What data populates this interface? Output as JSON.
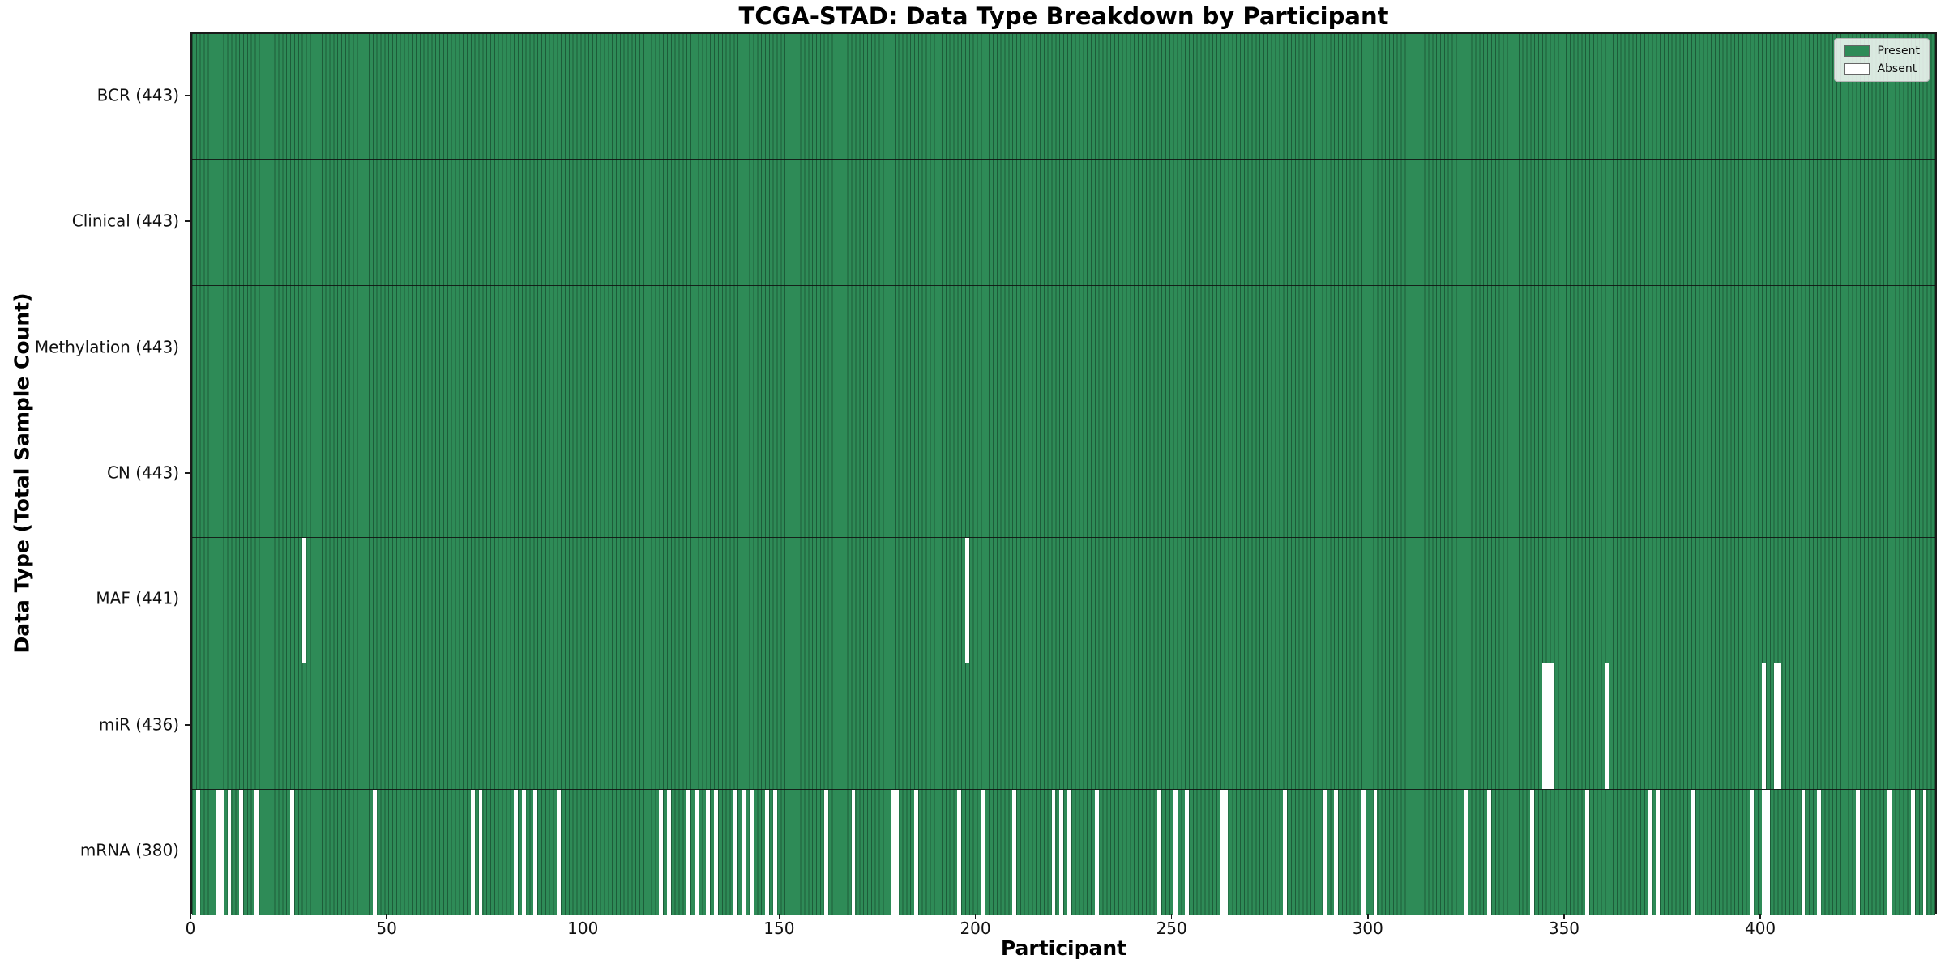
{
  "figure": {
    "title": "TCGA-STAD: Data Type Breakdown by Participant",
    "xlabel": "Participant",
    "ylabel": "Data Type (Total Sample Count)"
  },
  "legend": {
    "items": [
      {
        "label": "Present",
        "color": "#2e8b57"
      },
      {
        "label": "Absent",
        "color": "#ffffff"
      }
    ]
  },
  "colors": {
    "present": "#2e8b57",
    "absent": "#ffffff",
    "bar_edge": "#1d5c39",
    "axis": "#1a1a1a"
  },
  "chart_data": {
    "type": "heatmap",
    "title": "TCGA-STAD: Data Type Breakdown by Participant",
    "xlabel": "Participant",
    "ylabel": "Data Type (Total Sample Count)",
    "x_range": [
      0,
      445
    ],
    "x_ticks": [
      0,
      50,
      100,
      150,
      200,
      250,
      300,
      350,
      400
    ],
    "n_participants": 443,
    "legend": [
      "Present",
      "Absent"
    ],
    "legend_position": "upper right",
    "grid": false,
    "rows": [
      {
        "data_type": "BCR",
        "label": "BCR (443)",
        "present_count": 443,
        "absent_participants": []
      },
      {
        "data_type": "Clinical",
        "label": "Clinical (443)",
        "present_count": 443,
        "absent_participants": []
      },
      {
        "data_type": "Methylation",
        "label": "Methylation (443)",
        "present_count": 443,
        "absent_participants": []
      },
      {
        "data_type": "CN",
        "label": "CN (443)",
        "present_count": 443,
        "absent_participants": []
      },
      {
        "data_type": "MAF",
        "label": "MAF (441)",
        "present_count": 441,
        "absent_participants": [
          28,
          197
        ]
      },
      {
        "data_type": "miR",
        "label": "miR (436)",
        "present_count": 436,
        "absent_participants": [
          344,
          345,
          346,
          360,
          400,
          403,
          404
        ]
      },
      {
        "data_type": "mRNA",
        "label": "mRNA (380)",
        "present_count": 380,
        "absent_participants": [
          1,
          6,
          7,
          9,
          12,
          16,
          25,
          46,
          71,
          73,
          82,
          84,
          87,
          93,
          119,
          121,
          126,
          128,
          131,
          133,
          138,
          140,
          142,
          146,
          148,
          161,
          168,
          178,
          179,
          184,
          195,
          201,
          209,
          219,
          221,
          223,
          230,
          246,
          250,
          253,
          262,
          263,
          278,
          288,
          291,
          298,
          301,
          324,
          330,
          341,
          355,
          371,
          373,
          382,
          397,
          400,
          401,
          410,
          414,
          424,
          432,
          438,
          441
        ]
      }
    ]
  }
}
